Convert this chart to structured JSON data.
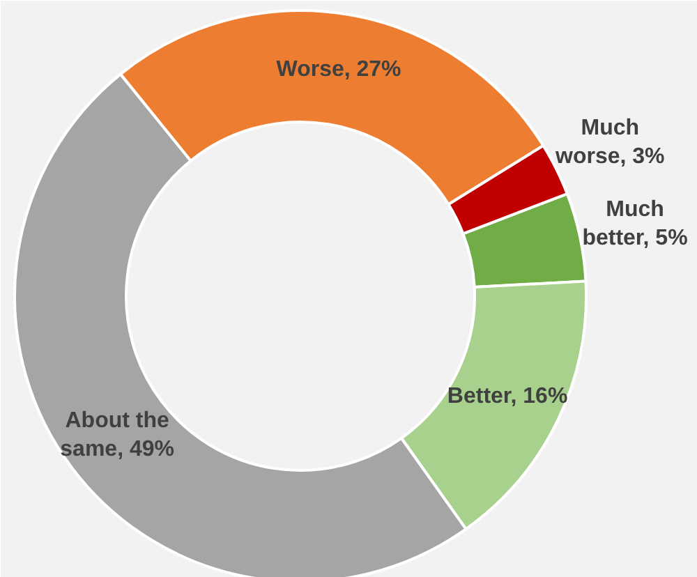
{
  "chart_data": {
    "type": "donut",
    "categories": [
      "Much better",
      "Better",
      "About the same",
      "Worse",
      "Much worse"
    ],
    "values": [
      5,
      16,
      49,
      27,
      3
    ],
    "colors": [
      "#70ad47",
      "#a9d18e",
      "#a5a5a5",
      "#ed7d31",
      "#c00000"
    ],
    "value_labels": [
      "5%",
      "16%",
      "49%",
      "27%",
      "3%"
    ],
    "legend": false
  }
}
